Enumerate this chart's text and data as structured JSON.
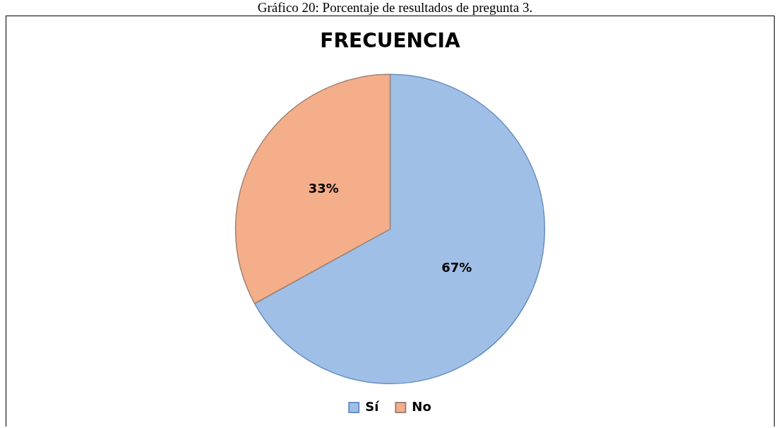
{
  "chart_data": {
    "type": "pie",
    "title": "FRECUENCIA",
    "categories": [
      "Sí",
      "No"
    ],
    "values": [
      67,
      33
    ],
    "colors": [
      "#9fbfe6",
      "#f5ae8a"
    ],
    "value_labels": [
      "67%",
      "33%"
    ],
    "legend": "bottom",
    "annotations": [
      "Gráfico 20: Porcentaje de resultados de pregunta 3."
    ]
  }
}
